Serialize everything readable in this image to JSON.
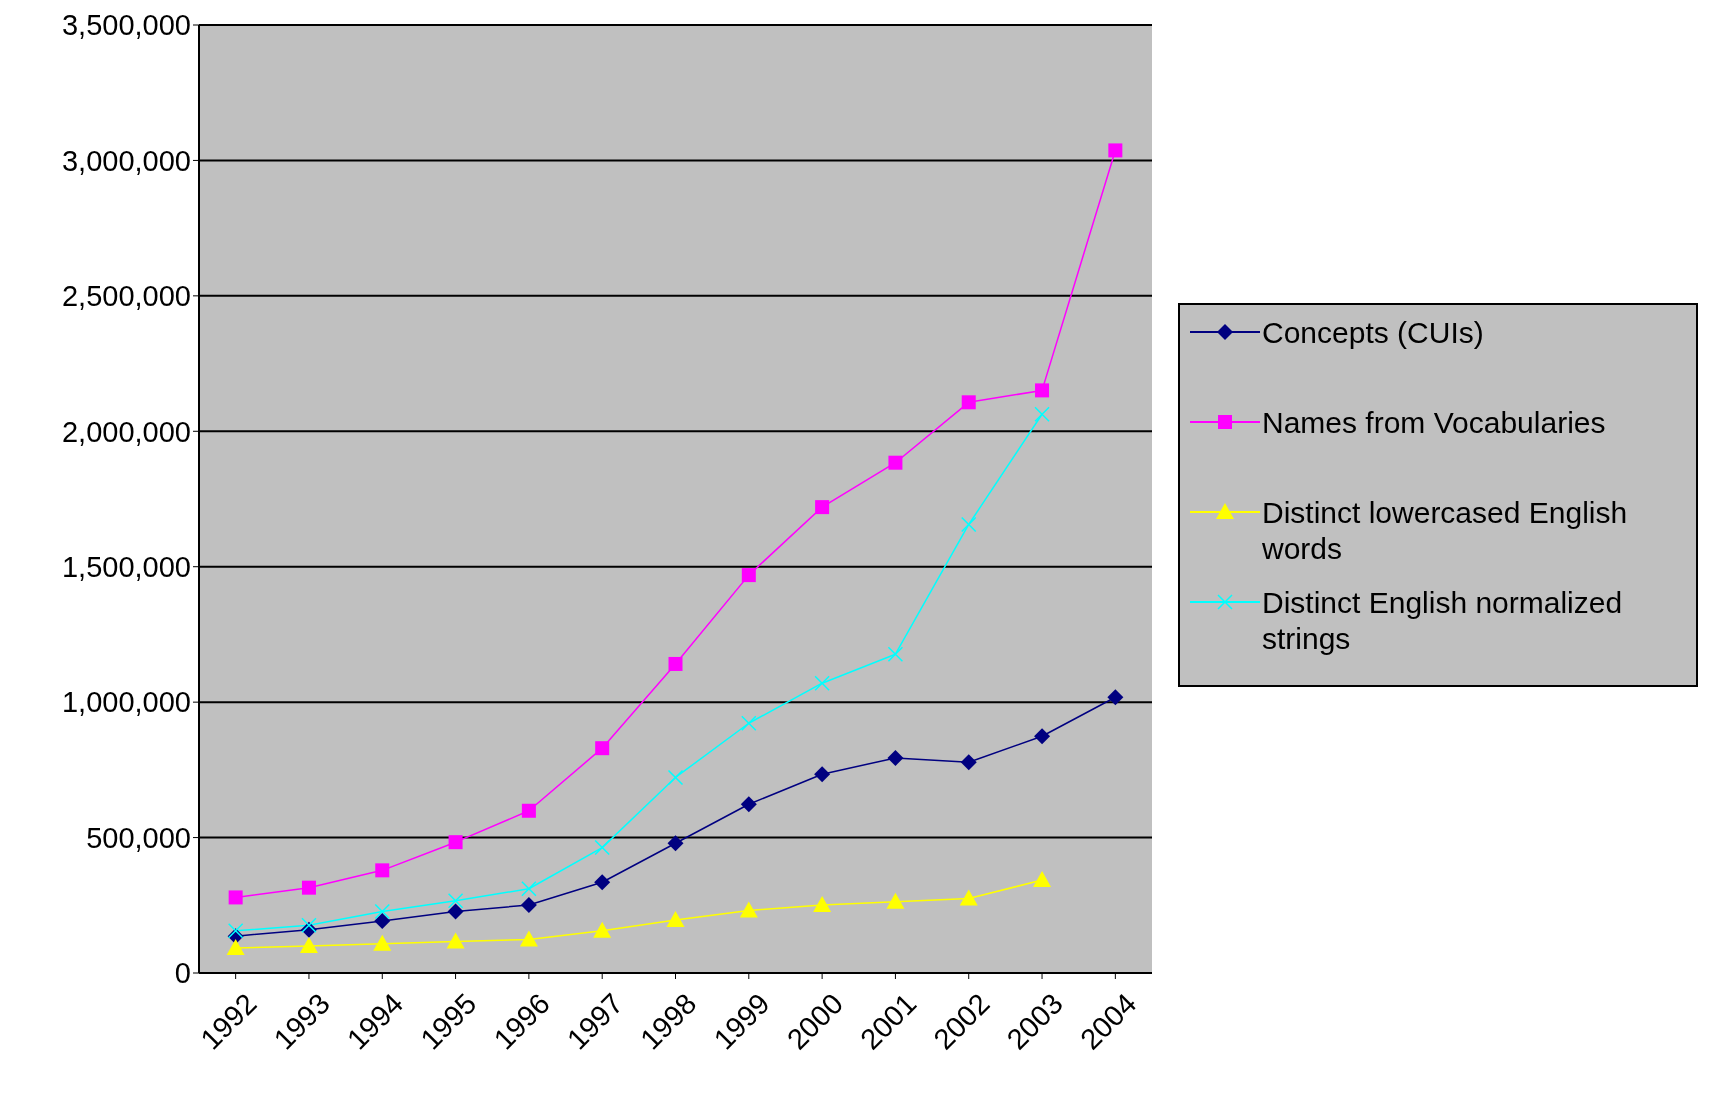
{
  "chart_data": {
    "type": "line",
    "categories": [
      "1992",
      "1993",
      "1994",
      "1995",
      "1996",
      "1997",
      "1998",
      "1999",
      "2000",
      "2001",
      "2002",
      "2003",
      "2004"
    ],
    "series": [
      {
        "name": "Concepts (CUIs)",
        "color": "#000080",
        "marker": "diamond",
        "values": [
          136000,
          160000,
          192000,
          227000,
          251000,
          335000,
          479000,
          623000,
          734000,
          794000,
          778000,
          874000,
          1018000
        ]
      },
      {
        "name": "Names from Vocabularies",
        "color": "#ff00ff",
        "marker": "square",
        "values": [
          279000,
          315000,
          379000,
          483000,
          599000,
          830000,
          1141000,
          1469000,
          1720000,
          1884000,
          2107000,
          2151000,
          3037000
        ]
      },
      {
        "name": "Distinct lowercased English words",
        "color": "#ffff00",
        "marker": "triangle",
        "values": [
          92000,
          100000,
          108000,
          116000,
          124000,
          156000,
          196000,
          231000,
          251000,
          263000,
          275000,
          343000,
          null
        ]
      },
      {
        "name": "Distinct English normalized strings",
        "color": "#00ffff",
        "marker": "cross",
        "values": [
          156000,
          176000,
          227000,
          267000,
          311000,
          463000,
          722000,
          922000,
          1070000,
          1177000,
          1656000,
          2063000,
          null
        ]
      }
    ],
    "ylim": [
      0,
      3500000
    ],
    "yticks": [
      {
        "value": 0,
        "label": "0"
      },
      {
        "value": 500000,
        "label": "500,000"
      },
      {
        "value": 1000000,
        "label": "1,000,000"
      },
      {
        "value": 1500000,
        "label": "1,500,000"
      },
      {
        "value": 2000000,
        "label": "2,000,000"
      },
      {
        "value": 2500000,
        "label": "2,500,000"
      },
      {
        "value": 3000000,
        "label": "3,000,000"
      },
      {
        "value": 3500000,
        "label": "3,500,000"
      }
    ],
    "grid": "y",
    "legend": "right"
  }
}
